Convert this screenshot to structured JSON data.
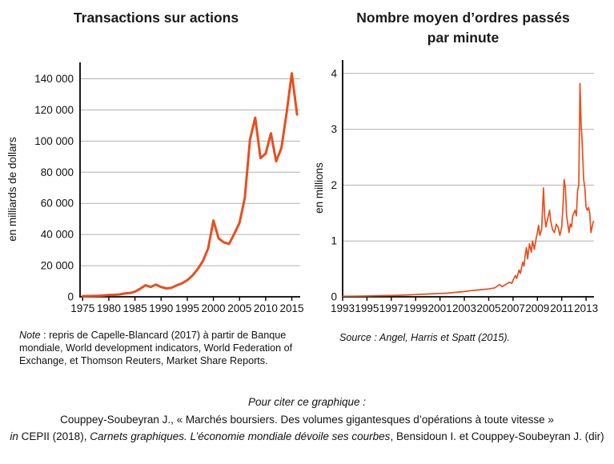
{
  "left_figure": {
    "title": "Transactions sur actions",
    "ylabel": "en milliards de dollars",
    "note": {
      "label": "Note",
      "line1_rest": " : repris de Capelle-Blancard (2017) à partir de Banque",
      "line2": "mondiale, World development indicators, World Federation of",
      "line3": "Exchange, et Thomson Reuters, Market Share Reports."
    }
  },
  "right_figure": {
    "title_line1": "Nombre moyen d’ordres passés",
    "title_line2": "par minute",
    "ylabel": "en millions",
    "source_text": "Source : Angel, Harris et Spatt (2015)."
  },
  "citation": {
    "intro": "Pour citer ce graphique :",
    "line2": "Couppey-Soubeyran J., « Marchés boursiers. Des volumes gigantesques d’opérations à toute vitesse »",
    "line3_in": "in",
    "line3_mid": " CEPII (2018), ",
    "line3_italic": "Carnets graphiques. L’économie mondiale dévoile ses courbes",
    "line3_end": ", Bensidoun I. et Couppey-Soubeyran J. (dir)"
  },
  "colors": {
    "line": "#e84e1d",
    "grid": "#b0b0b0",
    "axis": "#000000",
    "text": "#111111"
  },
  "chart_data": [
    {
      "id": "left",
      "type": "line",
      "title": "Transactions sur actions",
      "xlabel": "",
      "ylabel": "en milliards de dollars",
      "legend": "none",
      "grid": "horizontal",
      "line_color": "#e84e1d",
      "grid_color": "#b0b0b0",
      "xlim": [
        1974.5,
        2016.6
      ],
      "ylim": [
        0,
        150500
      ],
      "x_ticks": [
        1975,
        1980,
        1985,
        1990,
        1995,
        2000,
        2005,
        2010,
        2015
      ],
      "x_tick_labels": [
        "1975",
        "1980",
        "1985",
        "1990",
        "1995",
        "2000",
        "2005",
        "2010",
        "2015"
      ],
      "y_ticks": [
        0,
        20000,
        40000,
        60000,
        80000,
        100000,
        120000,
        140000
      ],
      "y_tick_labels": [
        "0",
        "20 000",
        "40 000",
        "60 000",
        "80 000",
        "100 000",
        "120 000",
        "140 000"
      ],
      "x": [
        1975,
        1976,
        1977,
        1978,
        1979,
        1980,
        1981,
        1982,
        1983,
        1984,
        1985,
        1986,
        1987,
        1988,
        1989,
        1990,
        1991,
        1992,
        1993,
        1994,
        1995,
        1996,
        1997,
        1998,
        1999,
        2000,
        2001,
        2002,
        2003,
        2004,
        2005,
        2006,
        2007,
        2008,
        2009,
        2010,
        2011,
        2012,
        2013,
        2014,
        2015,
        2016
      ],
      "y": [
        400,
        500,
        550,
        650,
        800,
        1200,
        1300,
        1500,
        2100,
        2400,
        3300,
        5200,
        7400,
        6300,
        7800,
        6300,
        5400,
        5800,
        7400,
        8700,
        10700,
        13600,
        17800,
        23000,
        31000,
        49000,
        37500,
        35000,
        34000,
        40500,
        47500,
        63500,
        101000,
        115000,
        89000,
        92000,
        105000,
        87000,
        95500,
        118000,
        143500,
        117000
      ]
    },
    {
      "id": "right",
      "type": "line",
      "title": "Nombre moyen d’ordres passés par minute",
      "xlabel": "",
      "ylabel": "en millions",
      "legend": "none",
      "grid": "horizontal",
      "line_color": "#e84e1d",
      "grid_color": "#b0b0b0",
      "xlim": [
        1993,
        2013.65
      ],
      "ylim": [
        0,
        4.24
      ],
      "x_ticks": [
        1993,
        1995,
        1997,
        1999,
        2001,
        2003,
        2005,
        2007,
        2009,
        2011,
        2013
      ],
      "x_tick_labels": [
        "1993",
        "1995",
        "1997",
        "1999",
        "2001",
        "2003",
        "2005",
        "2007",
        "2009",
        "2011",
        "2013"
      ],
      "y_ticks": [
        0,
        1,
        2,
        3,
        4
      ],
      "y_tick_labels": [
        "0",
        "1",
        "2",
        "3",
        "4"
      ],
      "x": [
        1993,
        1994,
        1995,
        1996,
        1997,
        1998,
        1999,
        2000,
        2001,
        2001.5,
        2002,
        2002.5,
        2003,
        2003.5,
        2004,
        2004.5,
        2005,
        2005.5,
        2005.9,
        2006.1,
        2006.4,
        2006.7,
        2006.9,
        2007.0,
        2007.2,
        2007.3,
        2007.5,
        2007.6,
        2007.8,
        2007.9,
        2008.0,
        2008.1,
        2008.2,
        2008.35,
        2008.5,
        2008.6,
        2008.75,
        2008.9,
        2009.0,
        2009.1,
        2009.2,
        2009.35,
        2009.5,
        2009.6,
        2009.7,
        2009.85,
        2010.0,
        2010.1,
        2010.25,
        2010.4,
        2010.55,
        2010.7,
        2010.85,
        2011.0,
        2011.1,
        2011.2,
        2011.3,
        2011.4,
        2011.5,
        2011.6,
        2011.7,
        2011.8,
        2011.9,
        2012.0,
        2012.1,
        2012.2,
        2012.3,
        2012.4,
        2012.5,
        2012.6,
        2012.65,
        2012.8,
        2012.9,
        2013.0,
        2013.1,
        2013.2,
        2013.3,
        2013.4,
        2013.5,
        2013.6
      ],
      "y": [
        0.01,
        0.012,
        0.015,
        0.02,
        0.025,
        0.03,
        0.04,
        0.05,
        0.06,
        0.065,
        0.075,
        0.085,
        0.095,
        0.11,
        0.12,
        0.13,
        0.14,
        0.16,
        0.22,
        0.18,
        0.22,
        0.26,
        0.24,
        0.3,
        0.38,
        0.33,
        0.48,
        0.42,
        0.62,
        0.55,
        0.75,
        0.88,
        0.68,
        0.95,
        0.8,
        1.0,
        0.85,
        1.05,
        1.15,
        1.28,
        1.1,
        1.2,
        1.95,
        1.45,
        1.25,
        1.4,
        1.55,
        1.35,
        1.2,
        1.15,
        1.3,
        1.25,
        1.1,
        1.25,
        1.6,
        2.1,
        1.95,
        1.45,
        1.3,
        1.15,
        1.3,
        1.25,
        1.45,
        1.5,
        1.55,
        1.45,
        1.9,
        2.0,
        3.82,
        3.05,
        2.9,
        2.1,
        1.95,
        1.6,
        1.55,
        1.6,
        1.5,
        1.15,
        1.25,
        1.35
      ]
    }
  ]
}
